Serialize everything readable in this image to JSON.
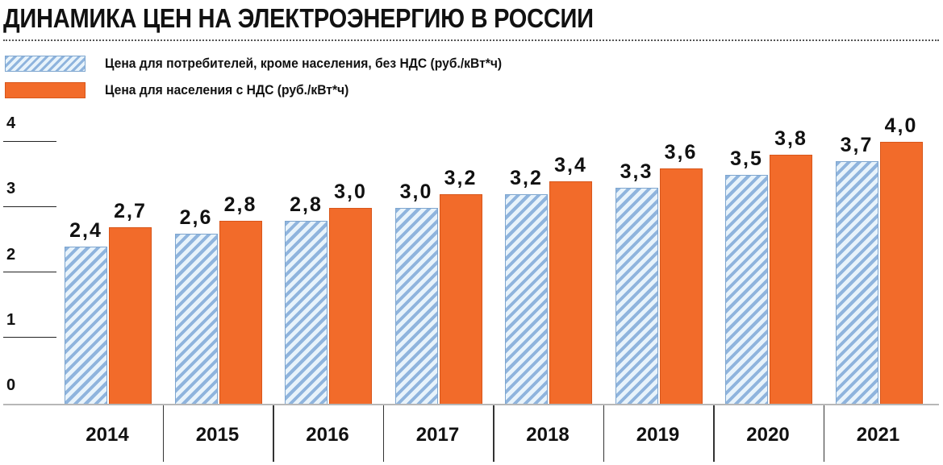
{
  "title": "ДИНАМИКА ЦЕН НА ЭЛЕКТРОЭНЕРГИЮ В РОССИИ",
  "legend": [
    {
      "label": "Цена для потребителей, кроме населения, без НДС (руб./кВт*ч)",
      "style": "hatched",
      "color": "#8fb4dd"
    },
    {
      "label": "Цена для населения с НДС (руб./кВт*ч)",
      "style": "solid",
      "color": "#f26b2a"
    }
  ],
  "yticks": [
    "0",
    "1",
    "2",
    "3",
    "4"
  ],
  "xlabels": [
    "2014",
    "2015",
    "2016",
    "2017",
    "2018",
    "2019",
    "2020",
    "2021"
  ],
  "value_labels": {
    "business": [
      "2,4",
      "2,6",
      "2,8",
      "3,0",
      "3,2",
      "3,3",
      "3,5",
      "3,7"
    ],
    "household": [
      "2,7",
      "2,8",
      "3,0",
      "3,2",
      "3,4",
      "3,6",
      "3,8",
      "4,0"
    ]
  },
  "chart_data": {
    "type": "bar",
    "title": "ДИНАМИКА ЦЕН НА ЭЛЕКТРОЭНЕРГИЮ В РОССИИ",
    "categories": [
      "2014",
      "2015",
      "2016",
      "2017",
      "2018",
      "2019",
      "2020",
      "2021"
    ],
    "series": [
      {
        "name": "Цена для потребителей, кроме населения, без НДС (руб./кВт*ч)",
        "values": [
          2.4,
          2.6,
          2.8,
          3.0,
          3.2,
          3.3,
          3.5,
          3.7
        ],
        "color": "#8fb4dd",
        "pattern": "diagonal-hatch"
      },
      {
        "name": "Цена для населения с НДС (руб./кВт*ч)",
        "values": [
          2.7,
          2.8,
          3.0,
          3.2,
          3.4,
          3.6,
          3.8,
          4.0
        ],
        "color": "#f26b2a",
        "pattern": "solid"
      }
    ],
    "xlabel": "",
    "ylabel": "",
    "ylim": [
      0,
      4
    ],
    "yticks": [
      0,
      1,
      2,
      3,
      4
    ],
    "legend_position": "top-left",
    "grid": false
  }
}
